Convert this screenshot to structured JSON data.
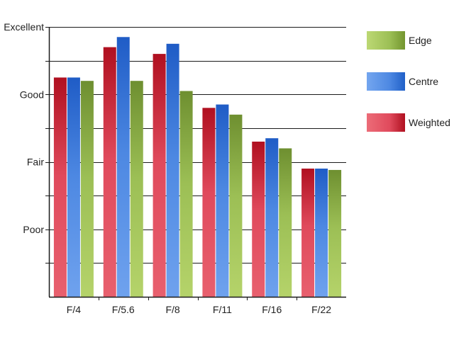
{
  "chart_data": {
    "type": "bar",
    "title": "",
    "xlabel": "",
    "ylabel": "",
    "categories": [
      "F/4",
      "F/5.6",
      "F/8",
      "F/11",
      "F/16",
      "F/22"
    ],
    "y_ticks": [
      {
        "label": "Poor",
        "value": 1
      },
      {
        "label": "Fair",
        "value": 2
      },
      {
        "label": "Good",
        "value": 3
      },
      {
        "label": "Excellent",
        "value": 4
      }
    ],
    "ylim": [
      0,
      4
    ],
    "grid": true,
    "legend_position": "right",
    "series": [
      {
        "name": "Weighted",
        "color": "#c8102e",
        "values": [
          3.25,
          3.7,
          3.6,
          2.8,
          2.3,
          1.9
        ]
      },
      {
        "name": "Centre",
        "color": "#2f6fd6",
        "values": [
          3.25,
          3.85,
          3.75,
          2.85,
          2.35,
          1.9
        ]
      },
      {
        "name": "Edge",
        "color": "#7fa23a",
        "values": [
          3.2,
          3.2,
          3.05,
          2.7,
          2.2,
          1.88
        ]
      }
    ],
    "legend_order": [
      "Edge",
      "Centre",
      "Weighted"
    ]
  }
}
